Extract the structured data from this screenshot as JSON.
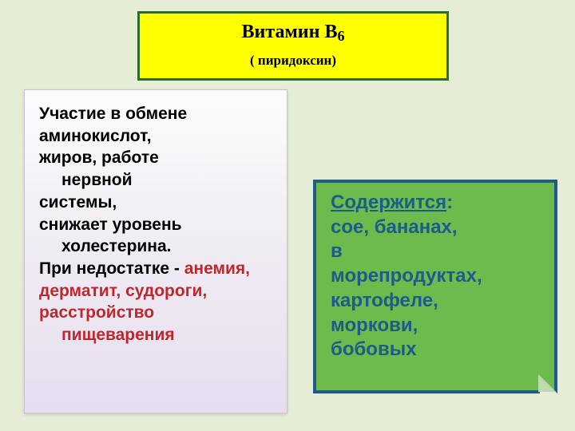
{
  "background_color": "#e6edd6",
  "title": {
    "main": "Витамин В",
    "subscript": "6",
    "subtitle": "( пиридоксин)",
    "bg_color": "#ffff00",
    "border_color": "#2a6d2a",
    "font_family": "Times New Roman",
    "main_fontsize": 24,
    "sub_fontsize": 17
  },
  "left_panel": {
    "bg_gradient_top": "#fcfcfd",
    "bg_gradient_bottom": "#e6def0",
    "fontsize": 21,
    "font_weight": "bold",
    "lines": [
      {
        "text": "Участие в обмене",
        "color": "#000000",
        "indent": false
      },
      {
        "text": "аминокислот,",
        "color": "#000000",
        "indent": false
      },
      {
        "text": "жиров, работе нервной",
        "color": "#000000",
        "indent_second": true,
        "line1": "жиров, работе",
        "line2": "нервной"
      },
      {
        "text": "системы,",
        "color": "#000000",
        "indent": false
      },
      {
        "text": "снижает уровень холестерина.",
        "color": "#000000",
        "indent_second": true,
        "line1": "снижает уровень",
        "line2": "холестерина."
      },
      {
        "text_prefix": "При недостатке - ",
        "text_suffix": "анемия,",
        "prefix_color": "#000000",
        "suffix_color": "#c0272d",
        "indent": false
      },
      {
        "text": "дерматит, судороги,",
        "color": "#c0272d",
        "indent": false
      },
      {
        "text": "расстройство пищеварения",
        "color": "#c0272d",
        "indent_second": true,
        "line1": "расстройство",
        "line2": "пищеварения"
      }
    ]
  },
  "right_panel": {
    "bg_color": "#6cbb4c",
    "border_color": "#1f5a8a",
    "text_color": "#1f5a8a",
    "fontsize": 24,
    "font_weight": "bold",
    "heading": "Содержится",
    "heading_suffix": ":",
    "body_lines": [
      "сое, бананах,",
      "в",
      "морепродуктах,",
      " картофеле,",
      "моркови,",
      "бобовых"
    ]
  }
}
